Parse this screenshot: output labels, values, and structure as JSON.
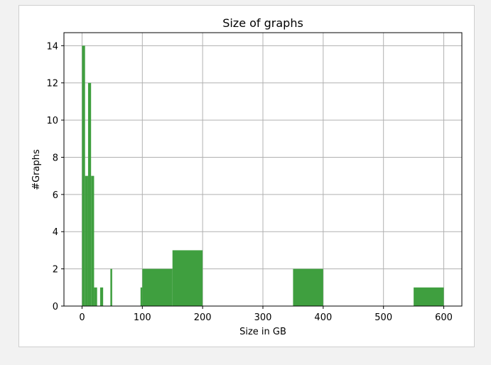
{
  "chart_data": {
    "type": "bar",
    "title": "Size of graphs",
    "xlabel": "Size in GB",
    "ylabel": "#Graphs",
    "xlim": [
      -30,
      630
    ],
    "ylim": [
      0,
      14.7
    ],
    "xticks": [
      0,
      100,
      200,
      300,
      400,
      500,
      600
    ],
    "yticks": [
      0,
      2,
      4,
      6,
      8,
      10,
      12,
      14
    ],
    "grid": true,
    "bar_color": "#3f9f3f",
    "bins": [
      {
        "start": 0,
        "end": 5,
        "count": 14
      },
      {
        "start": 5,
        "end": 10,
        "count": 7
      },
      {
        "start": 10,
        "end": 15,
        "count": 12
      },
      {
        "start": 15,
        "end": 20,
        "count": 7
      },
      {
        "start": 20,
        "end": 25,
        "count": 1
      },
      {
        "start": 30,
        "end": 35,
        "count": 1
      },
      {
        "start": 47,
        "end": 50,
        "count": 2
      },
      {
        "start": 97,
        "end": 100,
        "count": 1
      },
      {
        "start": 100,
        "end": 150,
        "count": 2
      },
      {
        "start": 150,
        "end": 200,
        "count": 3
      },
      {
        "start": 350,
        "end": 400,
        "count": 2
      },
      {
        "start": 550,
        "end": 600,
        "count": 1
      }
    ]
  }
}
